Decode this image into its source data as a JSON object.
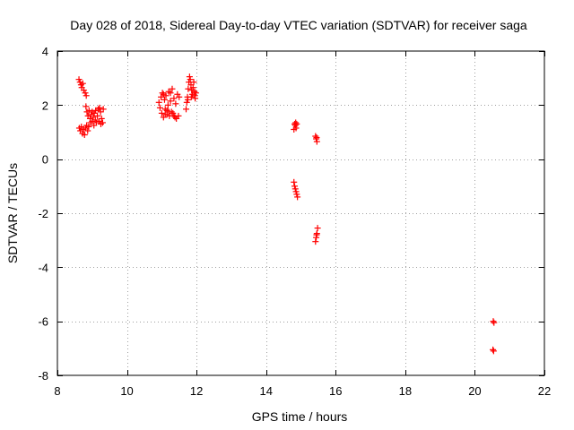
{
  "chart_data": {
    "type": "scatter",
    "title": "Day 028 of 2018, Sidereal Day-to-day VTEC variation (SDTVAR) for receiver saga",
    "xlabel": "GPS time / hours",
    "ylabel": "SDTVAR / TECUs",
    "xlim": [
      8,
      22
    ],
    "ylim": [
      -8,
      4
    ],
    "xticks": [
      8,
      10,
      12,
      14,
      16,
      18,
      20,
      22
    ],
    "yticks": [
      -8,
      -6,
      -4,
      -2,
      0,
      2,
      4
    ],
    "xtick_labels": [
      "8",
      "10",
      "12",
      "14",
      "16",
      "18",
      "20",
      "22"
    ],
    "ytick_labels": [
      "-8",
      "-6",
      "-4",
      "-2",
      "0",
      "2",
      "4"
    ],
    "grid": true,
    "marker": "+",
    "series": [
      {
        "name": "SDTVAR",
        "color": "#ff0000",
        "points": [
          [
            8.62,
            2.95
          ],
          [
            8.65,
            2.85
          ],
          [
            8.68,
            2.75
          ],
          [
            8.7,
            2.65
          ],
          [
            8.73,
            2.8
          ],
          [
            8.76,
            2.55
          ],
          [
            8.8,
            2.45
          ],
          [
            8.83,
            2.35
          ],
          [
            8.63,
            1.15
          ],
          [
            8.66,
            1.05
          ],
          [
            8.69,
            1.2
          ],
          [
            8.72,
            0.95
          ],
          [
            8.75,
            1.1
          ],
          [
            8.78,
            0.9
          ],
          [
            8.81,
            1.15
          ],
          [
            8.84,
            1.25
          ],
          [
            8.87,
            1.05
          ],
          [
            8.9,
            1.2
          ],
          [
            8.82,
            1.95
          ],
          [
            8.85,
            1.75
          ],
          [
            8.88,
            1.6
          ],
          [
            8.91,
            1.8
          ],
          [
            8.94,
            1.5
          ],
          [
            8.97,
            1.65
          ],
          [
            9.0,
            1.4
          ],
          [
            9.03,
            1.55
          ],
          [
            9.06,
            1.7
          ],
          [
            9.09,
            1.45
          ],
          [
            9.12,
            1.35
          ],
          [
            9.15,
            1.6
          ],
          [
            9.18,
            1.85
          ],
          [
            9.21,
            1.9
          ],
          [
            9.24,
            1.75
          ],
          [
            9.27,
            1.5
          ],
          [
            9.3,
            1.35
          ],
          [
            9.05,
            1.25
          ],
          [
            9.1,
            1.8
          ],
          [
            9.2,
            1.4
          ],
          [
            9.25,
            1.3
          ],
          [
            9.0,
            1.75
          ],
          [
            8.95,
            1.35
          ],
          [
            9.32,
            1.85
          ],
          [
            10.92,
            2.1
          ],
          [
            10.95,
            1.9
          ],
          [
            10.98,
            2.3
          ],
          [
            11.0,
            1.7
          ],
          [
            11.02,
            2.45
          ],
          [
            11.05,
            1.55
          ],
          [
            11.08,
            2.2
          ],
          [
            11.1,
            1.65
          ],
          [
            11.12,
            2.35
          ],
          [
            11.15,
            1.8
          ],
          [
            11.18,
            2.0
          ],
          [
            11.2,
            2.5
          ],
          [
            11.22,
            1.6
          ],
          [
            11.25,
            2.15
          ],
          [
            11.28,
            1.75
          ],
          [
            11.3,
            2.6
          ],
          [
            11.32,
            1.7
          ],
          [
            11.35,
            2.25
          ],
          [
            11.38,
            1.55
          ],
          [
            11.4,
            2.05
          ],
          [
            11.42,
            1.5
          ],
          [
            11.45,
            2.4
          ],
          [
            11.48,
            1.6
          ],
          [
            11.5,
            2.3
          ],
          [
            11.05,
            2.4
          ],
          [
            11.15,
            1.65
          ],
          [
            11.25,
            2.45
          ],
          [
            11.35,
            1.6
          ],
          [
            11.1,
            1.85
          ],
          [
            11.2,
            1.75
          ],
          [
            11.7,
            1.85
          ],
          [
            11.72,
            2.1
          ],
          [
            11.74,
            2.3
          ],
          [
            11.76,
            2.6
          ],
          [
            11.78,
            2.85
          ],
          [
            11.8,
            3.05
          ],
          [
            11.82,
            2.95
          ],
          [
            11.84,
            2.75
          ],
          [
            11.86,
            2.55
          ],
          [
            11.88,
            2.4
          ],
          [
            11.9,
            2.65
          ],
          [
            11.92,
            2.85
          ],
          [
            11.94,
            2.5
          ],
          [
            11.96,
            2.25
          ],
          [
            11.98,
            2.45
          ],
          [
            11.75,
            2.2
          ],
          [
            11.85,
            2.3
          ],
          [
            11.95,
            2.35
          ],
          [
            14.82,
            1.3
          ],
          [
            14.84,
            1.25
          ],
          [
            14.86,
            1.15
          ],
          [
            14.88,
            1.3
          ],
          [
            14.8,
            1.1
          ],
          [
            14.85,
            1.35
          ],
          [
            14.8,
            -0.85
          ],
          [
            14.82,
            -1.0
          ],
          [
            14.84,
            -1.1
          ],
          [
            14.86,
            -1.2
          ],
          [
            14.88,
            -1.3
          ],
          [
            14.9,
            -1.4
          ],
          [
            15.42,
            0.85
          ],
          [
            15.44,
            0.75
          ],
          [
            15.46,
            0.65
          ],
          [
            15.45,
            0.8
          ],
          [
            15.42,
            -3.05
          ],
          [
            15.44,
            -2.9
          ],
          [
            15.46,
            -2.75
          ],
          [
            15.48,
            -2.55
          ],
          [
            15.45,
            -2.8
          ],
          [
            20.53,
            -6.0
          ],
          [
            20.55,
            -6.05
          ],
          [
            20.52,
            -7.05
          ],
          [
            20.54,
            -7.1
          ]
        ]
      }
    ]
  }
}
